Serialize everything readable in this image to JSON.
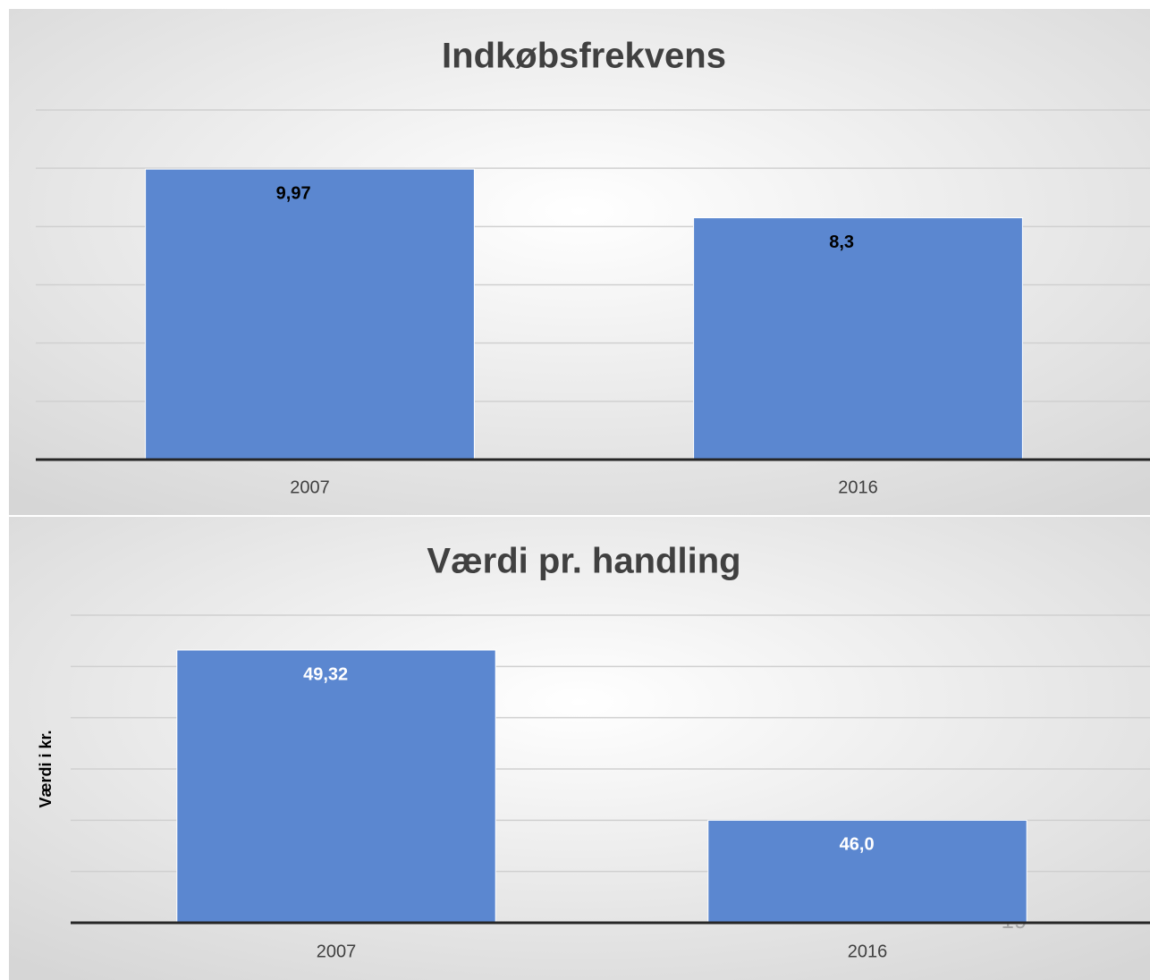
{
  "chart_data": [
    {
      "type": "bar",
      "title": "Indkøbsfrekvens",
      "categories": [
        "2007",
        "2016"
      ],
      "values": [
        9.97,
        8.3
      ],
      "value_labels": [
        "9,97",
        "8,3"
      ],
      "color": "#5b87d0",
      "ylim": [
        0,
        12
      ],
      "yticks": [
        0,
        2,
        4,
        6,
        8,
        10,
        12
      ],
      "grid": true
    },
    {
      "type": "bar",
      "title": "Værdi pr. handling",
      "ylabel": "Værdi i kr.",
      "categories": [
        "2007",
        "2016"
      ],
      "values": [
        49.32,
        46.0
      ],
      "value_labels": [
        "49,32",
        "46,0"
      ],
      "color": "#5b87d0",
      "ylim": [
        44,
        50
      ],
      "yticks": [
        44,
        45,
        46,
        47,
        48,
        49,
        50
      ],
      "grid": true
    }
  ],
  "page_number": "19"
}
